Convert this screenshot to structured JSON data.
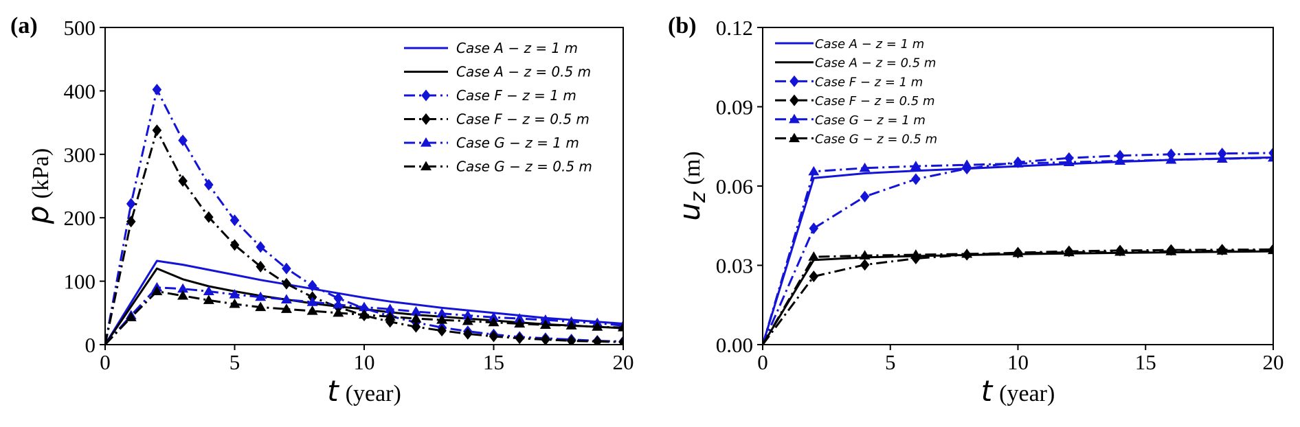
{
  "chart_data": [
    {
      "type": "line",
      "panel_label": "(a)",
      "title": "",
      "xlabel_symbol": "t",
      "xlabel_unit": "(year)",
      "ylabel_symbol": "p",
      "ylabel_sub": "",
      "ylabel_unit": "(kPa)",
      "xlim": [
        0,
        20
      ],
      "ylim": [
        0,
        500
      ],
      "xticks": [
        "0",
        "5",
        "10",
        "15",
        "20"
      ],
      "yticks": [
        "0",
        "100",
        "200",
        "300",
        "400",
        "500"
      ],
      "xtick_values": [
        0,
        5,
        10,
        15,
        20
      ],
      "ytick_values": [
        0,
        100,
        200,
        300,
        400,
        500
      ],
      "legend_position": "top-right",
      "series": [
        {
          "name": "Case A − z = 1 m",
          "color": "#1414d6",
          "style": "solid",
          "marker": "none",
          "x": [
            0,
            2,
            3,
            4,
            5,
            6,
            7,
            8,
            9,
            10,
            11,
            12,
            13,
            14,
            15,
            16,
            17,
            18,
            19,
            20
          ],
          "y": [
            0,
            132,
            126,
            118,
            110,
            102,
            95,
            88,
            81,
            74,
            68,
            63,
            58,
            54,
            50,
            46,
            42,
            39,
            36,
            33
          ]
        },
        {
          "name": "Case A − z = 0.5 m",
          "color": "#000000",
          "style": "solid",
          "marker": "none",
          "x": [
            0,
            2,
            3,
            4,
            5,
            6,
            7,
            8,
            9,
            10,
            11,
            12,
            13,
            14,
            15,
            16,
            17,
            18,
            19,
            20
          ],
          "y": [
            0,
            120,
            103,
            92,
            84,
            77,
            71,
            65,
            60,
            56,
            51,
            47,
            44,
            41,
            38,
            35,
            32,
            30,
            28,
            26
          ]
        },
        {
          "name": "Case F − z = 1 m",
          "color": "#1414d6",
          "style": "dashdot",
          "marker": "diamond",
          "x": [
            0,
            1,
            2,
            3,
            4,
            5,
            6,
            7,
            8,
            9,
            10,
            11,
            12,
            13,
            14,
            15,
            16,
            17,
            18,
            19,
            20
          ],
          "y": [
            0,
            222,
            402,
            322,
            252,
            196,
            154,
            120,
            93,
            73,
            57,
            45,
            35,
            27,
            21,
            16,
            12,
            10,
            8,
            6,
            5
          ]
        },
        {
          "name": "Case F − z = 0.5 m",
          "color": "#000000",
          "style": "dashdot",
          "marker": "diamond",
          "x": [
            0,
            1,
            2,
            3,
            4,
            5,
            6,
            7,
            8,
            9,
            10,
            11,
            12,
            13,
            14,
            15,
            16,
            17,
            18,
            19,
            20
          ],
          "y": [
            0,
            194,
            338,
            258,
            201,
            157,
            123,
            96,
            75,
            59,
            46,
            36,
            28,
            22,
            17,
            13,
            10,
            8,
            6,
            5,
            4
          ]
        },
        {
          "name": "Case G − z = 1 m",
          "color": "#1414d6",
          "style": "dashdot",
          "marker": "triangle",
          "x": [
            0,
            1,
            2,
            3,
            4,
            5,
            6,
            7,
            8,
            9,
            10,
            11,
            12,
            13,
            14,
            15,
            16,
            17,
            18,
            19,
            20
          ],
          "y": [
            0,
            46,
            90,
            88,
            84,
            79,
            75,
            71,
            67,
            63,
            59,
            56,
            52,
            49,
            46,
            43,
            41,
            39,
            36,
            34,
            30
          ]
        },
        {
          "name": "Case G − z = 0.5 m",
          "color": "#000000",
          "style": "dashdot",
          "marker": "triangle",
          "x": [
            0,
            1,
            2,
            3,
            4,
            5,
            6,
            7,
            8,
            9,
            10,
            11,
            12,
            13,
            14,
            15,
            16,
            17,
            18,
            19,
            20
          ],
          "y": [
            0,
            43,
            84,
            77,
            70,
            64,
            59,
            56,
            53,
            50,
            47,
            44,
            41,
            39,
            37,
            35,
            33,
            31,
            30,
            28,
            27
          ]
        }
      ]
    },
    {
      "type": "line",
      "panel_label": "(b)",
      "title": "",
      "xlabel_symbol": "t",
      "xlabel_unit": "(year)",
      "ylabel_symbol": "u",
      "ylabel_sub": "z",
      "ylabel_unit": "(m)",
      "xlim": [
        0,
        20
      ],
      "ylim": [
        0,
        0.12
      ],
      "xticks": [
        "0",
        "5",
        "10",
        "15",
        "20"
      ],
      "yticks": [
        "0.00",
        "0.03",
        "0.06",
        "0.09",
        "0.12"
      ],
      "xtick_values": [
        0,
        5,
        10,
        15,
        20
      ],
      "ytick_values": [
        0,
        0.03,
        0.06,
        0.09,
        0.12
      ],
      "legend_position": "top-left",
      "series": [
        {
          "name": "Case A − z = 1 m",
          "color": "#1414d6",
          "style": "solid",
          "marker": "none",
          "x": [
            0,
            2,
            4,
            6,
            8,
            10,
            12,
            14,
            16,
            18,
            20
          ],
          "y": [
            0,
            0.063,
            0.0648,
            0.0658,
            0.0666,
            0.0675,
            0.0684,
            0.0692,
            0.0699,
            0.0704,
            0.0708
          ]
        },
        {
          "name": "Case A − z = 0.5 m",
          "color": "#000000",
          "style": "solid",
          "marker": "none",
          "x": [
            0,
            2,
            4,
            6,
            8,
            10,
            12,
            14,
            16,
            18,
            20
          ],
          "y": [
            0,
            0.032,
            0.033,
            0.0335,
            0.0339,
            0.0342,
            0.0345,
            0.0347,
            0.0349,
            0.0351,
            0.0353
          ]
        },
        {
          "name": "Case F − z = 1 m",
          "color": "#1414d6",
          "style": "dashdot",
          "marker": "diamond",
          "x": [
            0,
            2,
            4,
            6,
            8,
            10,
            12,
            14,
            16,
            18,
            20
          ],
          "y": [
            0,
            0.044,
            0.056,
            0.0626,
            0.0666,
            0.069,
            0.0706,
            0.0715,
            0.072,
            0.0723,
            0.0725
          ]
        },
        {
          "name": "Case F − z = 0.5 m",
          "color": "#000000",
          "style": "dashdot",
          "marker": "diamond",
          "x": [
            0,
            2,
            4,
            6,
            8,
            10,
            12,
            14,
            16,
            18,
            20
          ],
          "y": [
            0,
            0.0258,
            0.0302,
            0.0326,
            0.034,
            0.0348,
            0.0353,
            0.0356,
            0.0358,
            0.0359,
            0.036
          ]
        },
        {
          "name": "Case G − z = 1 m",
          "color": "#1414d6",
          "style": "dashdot",
          "marker": "triangle",
          "x": [
            0,
            2,
            4,
            6,
            8,
            10,
            12,
            14,
            16,
            18,
            20
          ],
          "y": [
            0,
            0.0655,
            0.0668,
            0.0675,
            0.068,
            0.0685,
            0.069,
            0.0695,
            0.0699,
            0.0703,
            0.0707
          ]
        },
        {
          "name": "Case G − z = 0.5 m",
          "color": "#000000",
          "style": "dashdot",
          "marker": "triangle",
          "x": [
            0,
            2,
            4,
            6,
            8,
            10,
            12,
            14,
            16,
            18,
            20
          ],
          "y": [
            0,
            0.0332,
            0.0337,
            0.034,
            0.0343,
            0.0346,
            0.0349,
            0.0351,
            0.0353,
            0.0355,
            0.0357
          ]
        }
      ]
    }
  ]
}
